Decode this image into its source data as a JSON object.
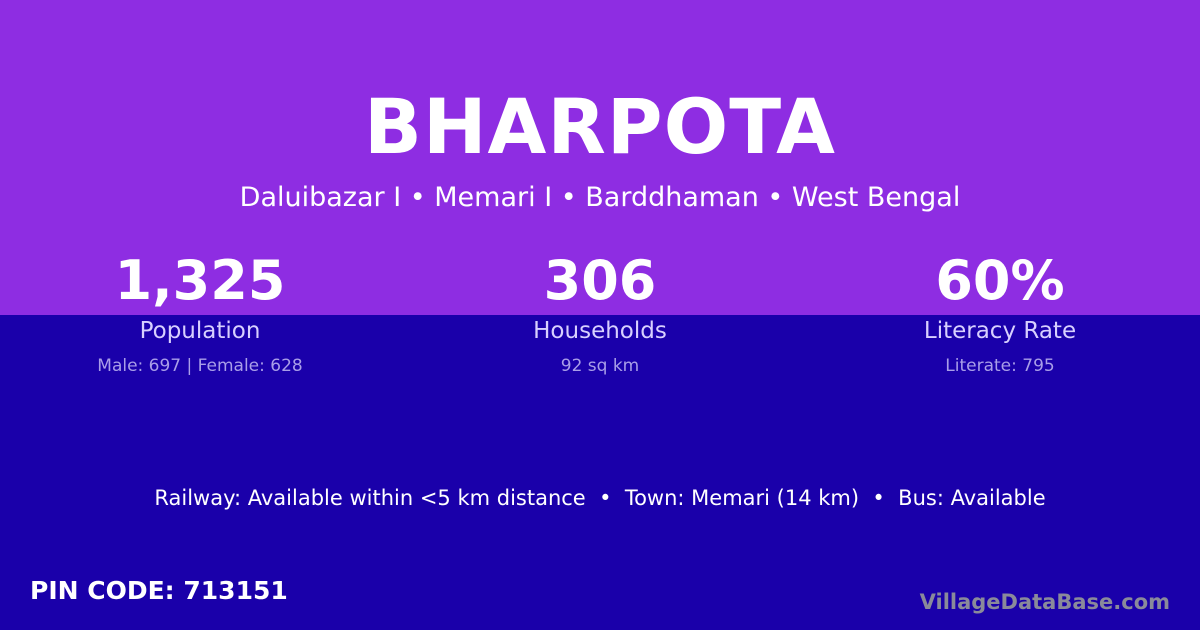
{
  "village": {
    "name": "BHARPOTA",
    "location": "Daluibazar I • Memari I • Barddhaman • West Bengal"
  },
  "stats": [
    {
      "value": "1,325",
      "label": "Population",
      "detail": "Male: 697 | Female: 628"
    },
    {
      "value": "306",
      "label": "Households",
      "detail": "92 sq km"
    },
    {
      "value": "60%",
      "label": "Literacy Rate",
      "detail": "Literate: 795"
    }
  ],
  "facts": "Railway: Available within <5 km distance  •  Town: Memari (14 km)  •  Bus: Available",
  "pin_code": "PIN CODE: 713151",
  "brand": "VillageDataBase.com",
  "colors": {
    "top_band": "#8e2de2",
    "bottom_band": "#1a00aa"
  }
}
